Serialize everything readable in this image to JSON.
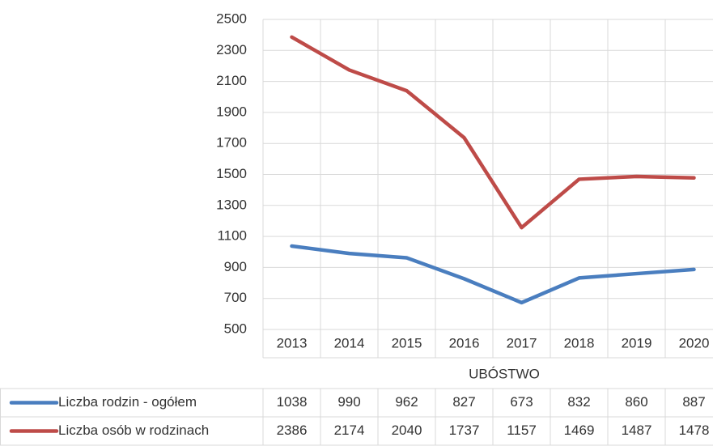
{
  "chart_data": {
    "type": "line",
    "xlabel": "UBÓSTWO",
    "categories": [
      "2013",
      "2014",
      "2015",
      "2016",
      "2017",
      "2018",
      "2019",
      "2020"
    ],
    "series": [
      {
        "name": "Liczba rodzin - ogółem",
        "color": "#4a7ebf",
        "values": [
          1038,
          990,
          962,
          827,
          673,
          832,
          860,
          887
        ]
      },
      {
        "name": "Liczba osób w rodzinach",
        "color": "#be4b48",
        "values": [
          2386,
          2174,
          2040,
          1737,
          1157,
          1469,
          1487,
          1478
        ]
      }
    ],
    "ylim": [
      500,
      2500
    ],
    "yticks": [
      500,
      700,
      900,
      1100,
      1300,
      1500,
      1700,
      1900,
      2100,
      2300,
      2500
    ],
    "grid": true,
    "legend": "data-table"
  }
}
